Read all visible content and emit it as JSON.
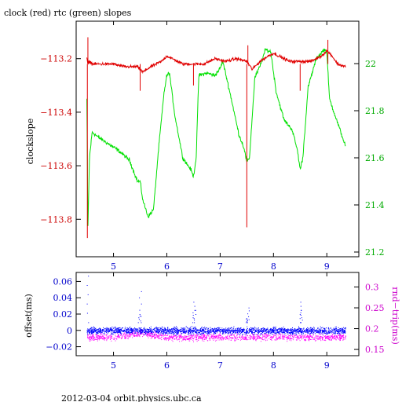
{
  "title": "clock (red) rtc (green) slopes",
  "footer": "2012-03-04 orbit.physics.ubc.ca",
  "colors": {
    "clock": "#e00000",
    "rtc": "#00e000",
    "offset": "#0000ff",
    "rndtrip": "#ff00ff",
    "tick_left_top": "#cc0000",
    "tick_right_top": "#00aa00",
    "tick_left_bottom": "#0000cc",
    "tick_right_bottom": "#cc00cc",
    "frame": "#000000"
  },
  "chart_data": [
    {
      "type": "line",
      "title": "clock (red) rtc (green) slopes",
      "ylabel": "clockslope",
      "xlim": [
        4.3,
        9.6
      ],
      "ylim": [
        -113.94,
        -113.06
      ],
      "y2lim": [
        21.18,
        22.18
      ],
      "x_ticks": [
        5,
        6,
        7,
        8,
        9
      ],
      "x_tick_labels": [
        "5",
        "6",
        "7",
        "8",
        "9"
      ],
      "y_ticks": [
        -113.2,
        -113.4,
        -113.6,
        -113.8
      ],
      "y_tick_labels": [
        "−113.2",
        "−113.4",
        "−113.6",
        "−113.8"
      ],
      "y2_ticks": [
        22,
        21.8,
        21.6,
        21.4,
        21.2
      ],
      "y2_tick_labels": [
        "22",
        "21.8",
        "21.6",
        "21.4",
        "21.2"
      ],
      "grid": false,
      "series": [
        {
          "name": "clock",
          "axis": "left",
          "x": [
            4.5,
            4.52,
            4.55,
            4.6,
            4.8,
            5.0,
            5.2,
            5.45,
            5.55,
            5.7,
            5.9,
            6.0,
            6.1,
            6.3,
            6.5,
            6.7,
            6.9,
            7.1,
            7.3,
            7.5,
            7.6,
            7.75,
            7.9,
            8.0,
            8.1,
            8.3,
            8.5,
            8.7,
            8.9,
            9.0,
            9.1,
            9.2,
            9.35
          ],
          "y": [
            -113.2,
            -113.22,
            -113.21,
            -113.22,
            -113.22,
            -113.22,
            -113.23,
            -113.23,
            -113.25,
            -113.23,
            -113.21,
            -113.19,
            -113.2,
            -113.22,
            -113.22,
            -113.22,
            -113.2,
            -113.21,
            -113.2,
            -113.21,
            -113.24,
            -113.21,
            -113.19,
            -113.18,
            -113.19,
            -113.21,
            -113.21,
            -113.21,
            -113.19,
            -113.17,
            -113.19,
            -113.22,
            -113.23
          ]
        },
        {
          "name": "rtc",
          "axis": "right",
          "x": [
            4.5,
            4.52,
            4.55,
            4.6,
            4.7,
            4.9,
            5.1,
            5.3,
            5.45,
            5.5,
            5.55,
            5.65,
            5.75,
            5.85,
            5.95,
            6.0,
            6.05,
            6.15,
            6.3,
            6.45,
            6.5,
            6.55,
            6.6,
            6.75,
            6.9,
            7.0,
            7.05,
            7.2,
            7.35,
            7.45,
            7.5,
            7.55,
            7.65,
            7.75,
            7.85,
            7.95,
            8.05,
            8.2,
            8.35,
            8.45,
            8.5,
            8.55,
            8.65,
            8.8,
            8.95,
            9.0,
            9.05,
            9.2,
            9.35
          ],
          "y": [
            21.85,
            21.3,
            21.6,
            21.71,
            21.69,
            21.66,
            21.63,
            21.59,
            21.5,
            21.5,
            21.42,
            21.35,
            21.38,
            21.65,
            21.88,
            21.95,
            21.96,
            21.78,
            21.6,
            21.55,
            21.52,
            21.6,
            21.95,
            21.96,
            21.95,
            21.98,
            22.01,
            21.86,
            21.7,
            21.64,
            21.58,
            21.6,
            21.94,
            21.99,
            22.06,
            22.05,
            21.88,
            21.76,
            21.72,
            21.63,
            21.55,
            21.6,
            21.9,
            22.02,
            22.06,
            22.05,
            21.85,
            21.75,
            21.65
          ]
        }
      ]
    },
    {
      "type": "scatter",
      "ylabel": "offset(ms)",
      "y2label": "rnd−trip(ms)",
      "xlim": [
        4.3,
        9.6
      ],
      "ylim": [
        -0.031,
        0.071
      ],
      "y2lim": [
        0.135,
        0.335
      ],
      "x_ticks": [
        5,
        6,
        7,
        8,
        9
      ],
      "x_tick_labels": [
        "5",
        "6",
        "7",
        "8",
        "9"
      ],
      "y_ticks": [
        0.06,
        0.04,
        0.02,
        0,
        -0.02
      ],
      "y_tick_labels": [
        "0.06",
        "0.04",
        "0.02",
        "0",
        "−0.02"
      ],
      "y2_ticks": [
        0.3,
        0.25,
        0.2,
        0.15
      ],
      "y2_tick_labels": [
        "0.3",
        "0.25",
        "0.2",
        "0.15"
      ],
      "grid": false,
      "series": [
        {
          "name": "offset",
          "axis": "left",
          "x": [
            4.5,
            4.52,
            5.0,
            5.48,
            5.5,
            6.0,
            6.5,
            6.52,
            7.0,
            7.5,
            7.52,
            8.0,
            8.5,
            8.52,
            9.0,
            9.35
          ],
          "y": [
            0.0,
            0.067,
            0.0,
            0.02,
            0.048,
            0.0,
            0.025,
            0.035,
            0.0,
            0.015,
            0.028,
            0.0,
            0.035,
            0.025,
            0.0,
            0.0
          ]
        },
        {
          "name": "rnd−trip",
          "axis": "right",
          "x": [
            4.5,
            5.0,
            5.5,
            6.0,
            6.5,
            7.0,
            7.5,
            8.0,
            8.5,
            9.0,
            9.35
          ],
          "y": [
            0.18,
            0.18,
            0.19,
            0.18,
            0.18,
            0.18,
            0.18,
            0.18,
            0.18,
            0.18,
            0.18
          ]
        }
      ]
    }
  ]
}
